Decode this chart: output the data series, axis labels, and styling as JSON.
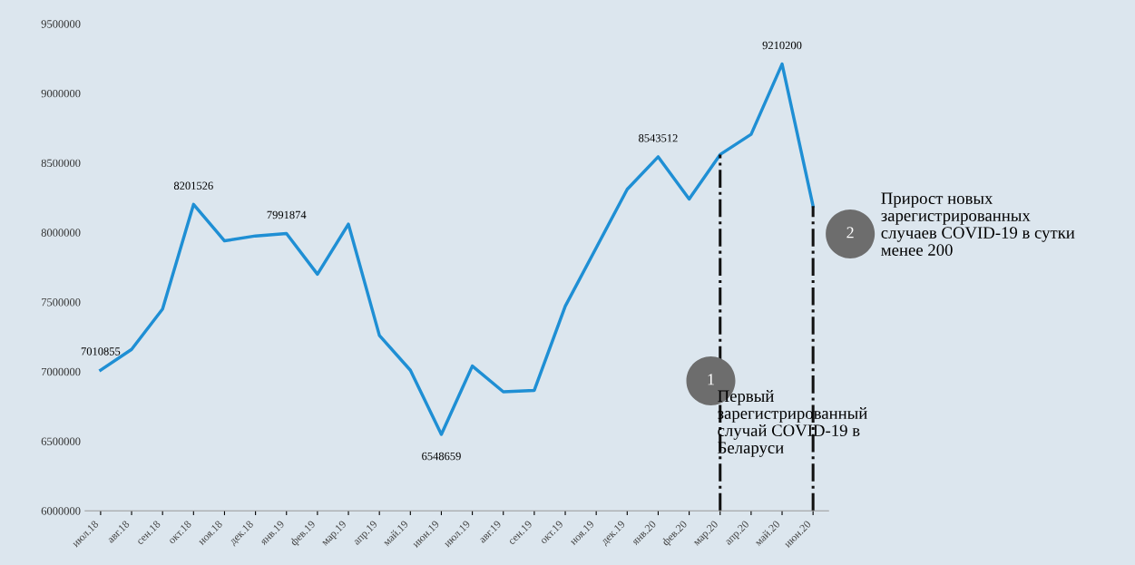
{
  "chart_data": {
    "type": "line",
    "categories": [
      "июл.18",
      "авг.18",
      "сен.18",
      "окт.18",
      "ноя.18",
      "дек.18",
      "янв.19",
      "фев.19",
      "мар.19",
      "апр.19",
      "май.19",
      "июн.19",
      "июл.19",
      "авг.19",
      "сен.19",
      "окт.19",
      "ноя.19",
      "дек.19",
      "янв.20",
      "фев.20",
      "мар.20",
      "апр.20",
      "май.20",
      "июн.20"
    ],
    "series": [
      {
        "color": "#1f8fd4",
        "values": [
          7010855,
          7160000,
          7450000,
          8201526,
          7940000,
          7975000,
          7991874,
          7700000,
          8060000,
          7260000,
          7010000,
          6548659,
          7040000,
          6855000,
          6865000,
          7470000,
          7890000,
          8310000,
          8543512,
          8240000,
          8560000,
          8705000,
          9210200,
          8190000
        ],
        "value_labels": [
          "7010855",
          null,
          null,
          "8201526",
          null,
          null,
          "7991874",
          null,
          null,
          null,
          null,
          "6548659",
          null,
          null,
          null,
          null,
          null,
          null,
          "8543512",
          null,
          null,
          null,
          "9210200",
          null
        ]
      }
    ],
    "ylim": [
      6000000,
      9500000
    ],
    "yticks": [
      6000000,
      6500000,
      7000000,
      7500000,
      8000000,
      8500000,
      9000000,
      9500000
    ],
    "grid": false,
    "marker": "none",
    "line_style": "solid",
    "ref_lines": [
      {
        "axis": "x",
        "value": "мар.20",
        "label": "1",
        "color": "#111111",
        "line_style": "dashdot"
      },
      {
        "axis": "x",
        "value": "июн.20",
        "label": "2",
        "color": "#111111",
        "line_style": "dashdot"
      }
    ],
    "annotations": [
      "Первый\nзарегистрированный\nслучай COVID-19 в\nБеларуси",
      "Прирост новых\nзарегистрированных\nслучаев COVID-19 в сутки\nменее 200"
    ]
  }
}
